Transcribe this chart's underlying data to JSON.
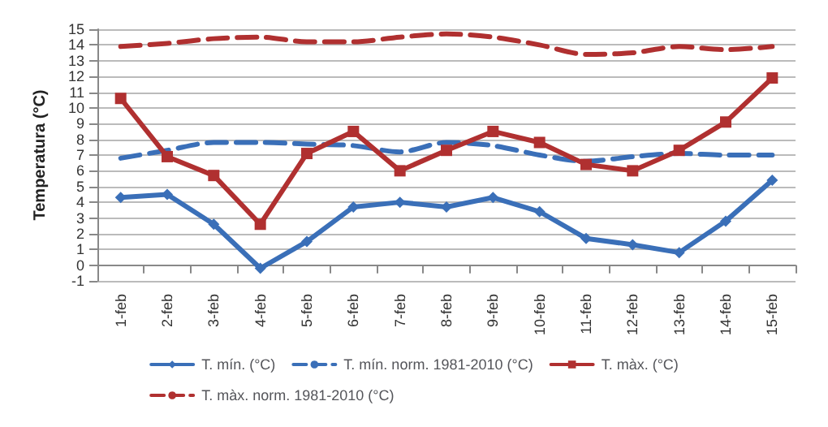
{
  "chart_data": {
    "type": "line",
    "ylabel": "Temperatura (°C)",
    "categories": [
      "1-feb",
      "2-feb",
      "3-feb",
      "4-feb",
      "5-feb",
      "6-feb",
      "7-feb",
      "8-feb",
      "9-feb",
      "10-feb",
      "11-feb",
      "12-feb",
      "13-feb",
      "14-feb",
      "15-feb"
    ],
    "series": [
      {
        "name": "T. mín. (°C)",
        "color": "#3a6fb8",
        "marker": "diamond",
        "line_style": "solid",
        "values": [
          4.3,
          4.5,
          2.6,
          -0.2,
          1.5,
          3.7,
          4.0,
          3.7,
          4.3,
          3.4,
          1.7,
          1.3,
          0.8,
          2.8,
          5.4
        ]
      },
      {
        "name": "T. mín. norm. 1981-2010 (°C)",
        "color": "#3a6fb8",
        "marker": "none",
        "line_style": "dashed",
        "values": [
          6.8,
          7.3,
          7.8,
          7.8,
          7.7,
          7.6,
          7.2,
          7.8,
          7.6,
          7.0,
          6.6,
          6.9,
          7.1,
          7.0,
          7.0
        ]
      },
      {
        "name": "T. màx. (°C)",
        "color": "#b03030",
        "marker": "square",
        "line_style": "solid",
        "values": [
          10.6,
          6.9,
          5.7,
          2.6,
          7.1,
          8.5,
          6.0,
          7.3,
          8.5,
          7.8,
          6.4,
          6.0,
          7.3,
          9.1,
          11.9
        ]
      },
      {
        "name": "T. màx. norm. 1981-2010 (°C)",
        "color": "#b03030",
        "marker": "none",
        "line_style": "dashed",
        "values": [
          13.9,
          14.1,
          14.4,
          14.5,
          14.2,
          14.2,
          14.5,
          14.7,
          14.5,
          14.0,
          13.4,
          13.5,
          13.9,
          13.7,
          13.9
        ]
      }
    ],
    "ylim": [
      -1,
      15
    ],
    "yticks": [
      -1,
      0,
      1,
      2,
      3,
      4,
      5,
      6,
      7,
      8,
      9,
      10,
      11,
      12,
      13,
      14,
      15
    ],
    "grid": "y",
    "legend": "bottom"
  }
}
